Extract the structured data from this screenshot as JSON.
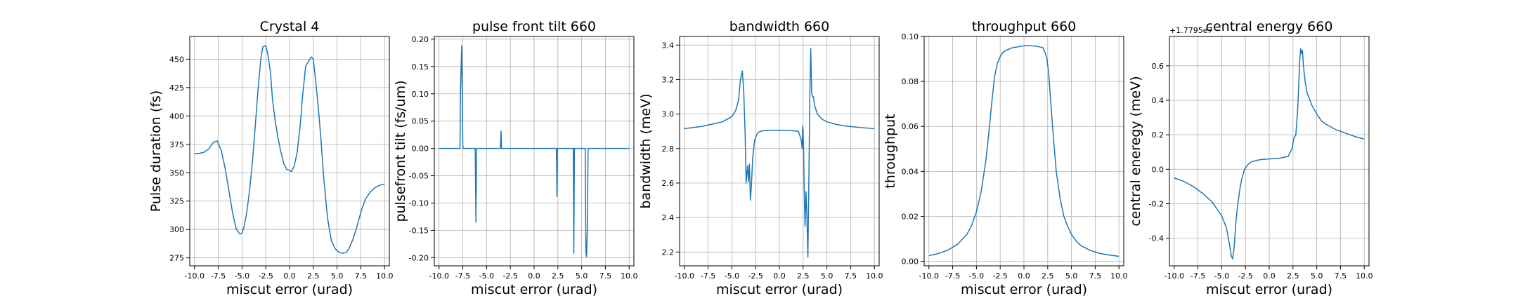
{
  "accent_color": "#1f77b4",
  "chart_data": [
    {
      "type": "line",
      "title": "Crystal 4",
      "xlabel": "miscut error (urad)",
      "ylabel": "Pulse duration (fs)",
      "xlim": [
        -10.5,
        10.5
      ],
      "ylim": [
        268,
        470
      ],
      "xticks": [
        "-10.0",
        "-7.5",
        "-5.0",
        "-2.5",
        "0.0",
        "2.5",
        "5.0",
        "7.5",
        "10.0"
      ],
      "yticks": [
        "275",
        "300",
        "325",
        "350",
        "375",
        "400",
        "425",
        "450"
      ],
      "grid": true,
      "series": [
        {
          "color": "#1f77b4",
          "x": [
            -10,
            -9.5,
            -9,
            -8.5,
            -8,
            -7.6,
            -7.2,
            -6.8,
            -6.4,
            -6,
            -5.6,
            -5.2,
            -5,
            -4.8,
            -4.5,
            -4.2,
            -3.9,
            -3.6,
            -3.3,
            -3,
            -2.8,
            -2.5,
            -2.3,
            -2,
            -1.8,
            -1.5,
            -1.2,
            -0.9,
            -0.6,
            -0.3,
            0,
            0.2,
            0.5,
            0.8,
            1.1,
            1.4,
            1.7,
            2,
            2.3,
            2.5,
            2.7,
            3,
            3.3,
            3.6,
            4,
            4.4,
            4.8,
            5.2,
            5.6,
            6,
            6.3,
            6.7,
            7.1,
            7.6,
            8,
            8.5,
            9,
            9.5,
            10
          ],
          "y": [
            367,
            367,
            368,
            371,
            377,
            378,
            370,
            355,
            335,
            315,
            300,
            296,
            297,
            302,
            315,
            335,
            360,
            392,
            425,
            452,
            461,
            462,
            455,
            438,
            415,
            395,
            380,
            368,
            358,
            353,
            352,
            351,
            356,
            368,
            390,
            420,
            444,
            448,
            452,
            450,
            435,
            410,
            380,
            345,
            310,
            290,
            283,
            280,
            279,
            280,
            284,
            292,
            303,
            318,
            327,
            333,
            337,
            339,
            340
          ]
        }
      ]
    },
    {
      "type": "line",
      "title": "pulse front tilt 660",
      "xlabel": "miscut error (urad)",
      "ylabel": "pulsefront tilt (fs/um)",
      "xlim": [
        -10.5,
        10.5
      ],
      "ylim": [
        -0.215,
        0.205
      ],
      "xticks": [
        "-10.0",
        "-7.5",
        "-5.0",
        "-2.5",
        "0.0",
        "2.5",
        "5.0",
        "7.5",
        "10.0"
      ],
      "yticks": [
        "-0.20",
        "-0.15",
        "-0.10",
        "-0.05",
        "0.00",
        "0.05",
        "0.10",
        "0.15",
        "0.20"
      ],
      "grid": true,
      "series": [
        {
          "color": "#1f77b4",
          "x": [
            -10,
            -7.8,
            -7.75,
            -7.62,
            -7.5,
            -7.45,
            -6.2,
            -6.12,
            -6.05,
            -3.55,
            -3.48,
            -3.42,
            2.35,
            2.4,
            2.45,
            4.12,
            4.18,
            4.24,
            5.38,
            5.45,
            5.52,
            5.6,
            5.68,
            10
          ],
          "y": [
            0,
            0,
            0.105,
            0.188,
            0.005,
            0,
            0,
            -0.135,
            0,
            0,
            0.032,
            0,
            0,
            -0.088,
            0,
            0,
            -0.192,
            0,
            0,
            -0.19,
            -0.198,
            -0.15,
            0,
            0
          ]
        }
      ]
    },
    {
      "type": "line",
      "title": "bandwidth 660",
      "xlabel": "miscut error (urad)",
      "ylabel": "bandwidth (meV)",
      "xlim": [
        -10.5,
        10.5
      ],
      "ylim": [
        2.12,
        3.45
      ],
      "xticks": [
        "-10.0",
        "-7.5",
        "-5.0",
        "-2.5",
        "0.0",
        "2.5",
        "5.0",
        "7.5",
        "10.0"
      ],
      "yticks": [
        "2.2",
        "2.4",
        "2.6",
        "2.8",
        "3.0",
        "3.2",
        "3.4"
      ],
      "grid": true,
      "series": [
        {
          "color": "#1f77b4",
          "x": [
            -10,
            -8,
            -6,
            -5,
            -4.6,
            -4.3,
            -4.1,
            -3.9,
            -3.75,
            -3.6,
            -3.5,
            -3.35,
            -3.25,
            -3.15,
            -3.05,
            -2.95,
            -2.8,
            -2.6,
            -2.3,
            -2,
            -1.5,
            -1,
            -0.5,
            0,
            1,
            2,
            2.3,
            2.4,
            2.45,
            2.5,
            2.55,
            2.6,
            2.7,
            2.8,
            2.9,
            3.0,
            3.1,
            3.2,
            3.3,
            3.4,
            3.5,
            3.6,
            3.7,
            4,
            4.5,
            5,
            6,
            7,
            8,
            9,
            10
          ],
          "y": [
            2.915,
            2.93,
            2.955,
            2.985,
            3.02,
            3.08,
            3.2,
            3.25,
            3.13,
            2.88,
            2.6,
            2.7,
            2.61,
            2.71,
            2.5,
            2.58,
            2.75,
            2.85,
            2.89,
            2.9,
            2.905,
            2.905,
            2.905,
            2.905,
            2.905,
            2.9,
            2.85,
            2.8,
            2.93,
            2.9,
            2.78,
            2.6,
            2.35,
            2.55,
            2.4,
            2.17,
            2.6,
            3.1,
            3.38,
            3.12,
            3.1,
            3.1,
            3.05,
            3.0,
            2.97,
            2.955,
            2.94,
            2.93,
            2.925,
            2.92,
            2.915
          ]
        }
      ]
    },
    {
      "type": "line",
      "title": "throughput 660",
      "xlabel": "miscut error (urad)",
      "ylabel": "throughput",
      "xlim": [
        -10.5,
        10.5
      ],
      "ylim": [
        -0.002,
        0.1
      ],
      "xticks": [
        "-10.0",
        "-7.5",
        "-5.0",
        "-2.5",
        "0.0",
        "2.5",
        "5.0",
        "7.5",
        "10.0"
      ],
      "yticks": [
        "0.00",
        "0.02",
        "0.04",
        "0.06",
        "0.08",
        "0.10"
      ],
      "grid": true,
      "series": [
        {
          "color": "#1f77b4",
          "x": [
            -10,
            -9,
            -8,
            -7,
            -6,
            -5.5,
            -5,
            -4.5,
            -4,
            -3.7,
            -3.4,
            -3.1,
            -2.8,
            -2.5,
            -2.2,
            -1.8,
            -1.2,
            -0.5,
            0.3,
            1,
            1.5,
            2,
            2.2,
            2.4,
            2.6,
            2.8,
            3.1,
            3.4,
            3.8,
            4.2,
            4.6,
            5,
            5.5,
            6,
            7,
            8,
            9,
            10
          ],
          "y": [
            0.0025,
            0.0035,
            0.005,
            0.0075,
            0.012,
            0.016,
            0.022,
            0.031,
            0.045,
            0.057,
            0.07,
            0.082,
            0.088,
            0.091,
            0.093,
            0.094,
            0.095,
            0.0955,
            0.096,
            0.0958,
            0.0955,
            0.095,
            0.093,
            0.0905,
            0.084,
            0.072,
            0.055,
            0.04,
            0.028,
            0.02,
            0.0155,
            0.012,
            0.009,
            0.007,
            0.0048,
            0.0035,
            0.0028,
            0.0022
          ]
        }
      ]
    },
    {
      "type": "line",
      "title": "central energy 660",
      "xlabel": "miscut error (urad)",
      "ylabel": "central eneregy (meV)",
      "offset_text": "+1.7795e7",
      "xlim": [
        -10.5,
        10.5
      ],
      "ylim": [
        -0.56,
        0.77
      ],
      "xticks": [
        "-10.0",
        "-7.5",
        "-5.0",
        "-2.5",
        "0.0",
        "2.5",
        "5.0",
        "7.5",
        "10.0"
      ],
      "yticks": [
        "-0.4",
        "-0.2",
        "0.0",
        "0.2",
        "0.4",
        "0.6"
      ],
      "grid": true,
      "series": [
        {
          "color": "#1f77b4",
          "x": [
            -10,
            -9,
            -8,
            -7,
            -6,
            -5,
            -4.5,
            -4.2,
            -4,
            -3.85,
            -3.7,
            -3.5,
            -3.3,
            -3.1,
            -2.9,
            -2.6,
            -2.2,
            -1.8,
            -1,
            0,
            1,
            2,
            2.4,
            2.6,
            2.8,
            3.0,
            3.2,
            3.3,
            3.4,
            3.5,
            3.6,
            3.7,
            3.8,
            4,
            4.5,
            5,
            5.5,
            6,
            7,
            8,
            9,
            10
          ],
          "y": [
            -0.05,
            -0.07,
            -0.1,
            -0.14,
            -0.19,
            -0.27,
            -0.34,
            -0.43,
            -0.5,
            -0.52,
            -0.46,
            -0.3,
            -0.2,
            -0.12,
            -0.06,
            0.0,
            0.03,
            0.045,
            0.055,
            0.06,
            0.063,
            0.075,
            0.12,
            0.18,
            0.2,
            0.35,
            0.62,
            0.7,
            0.67,
            0.69,
            0.6,
            0.55,
            0.5,
            0.44,
            0.37,
            0.32,
            0.28,
            0.26,
            0.23,
            0.21,
            0.19,
            0.175
          ]
        }
      ]
    }
  ]
}
